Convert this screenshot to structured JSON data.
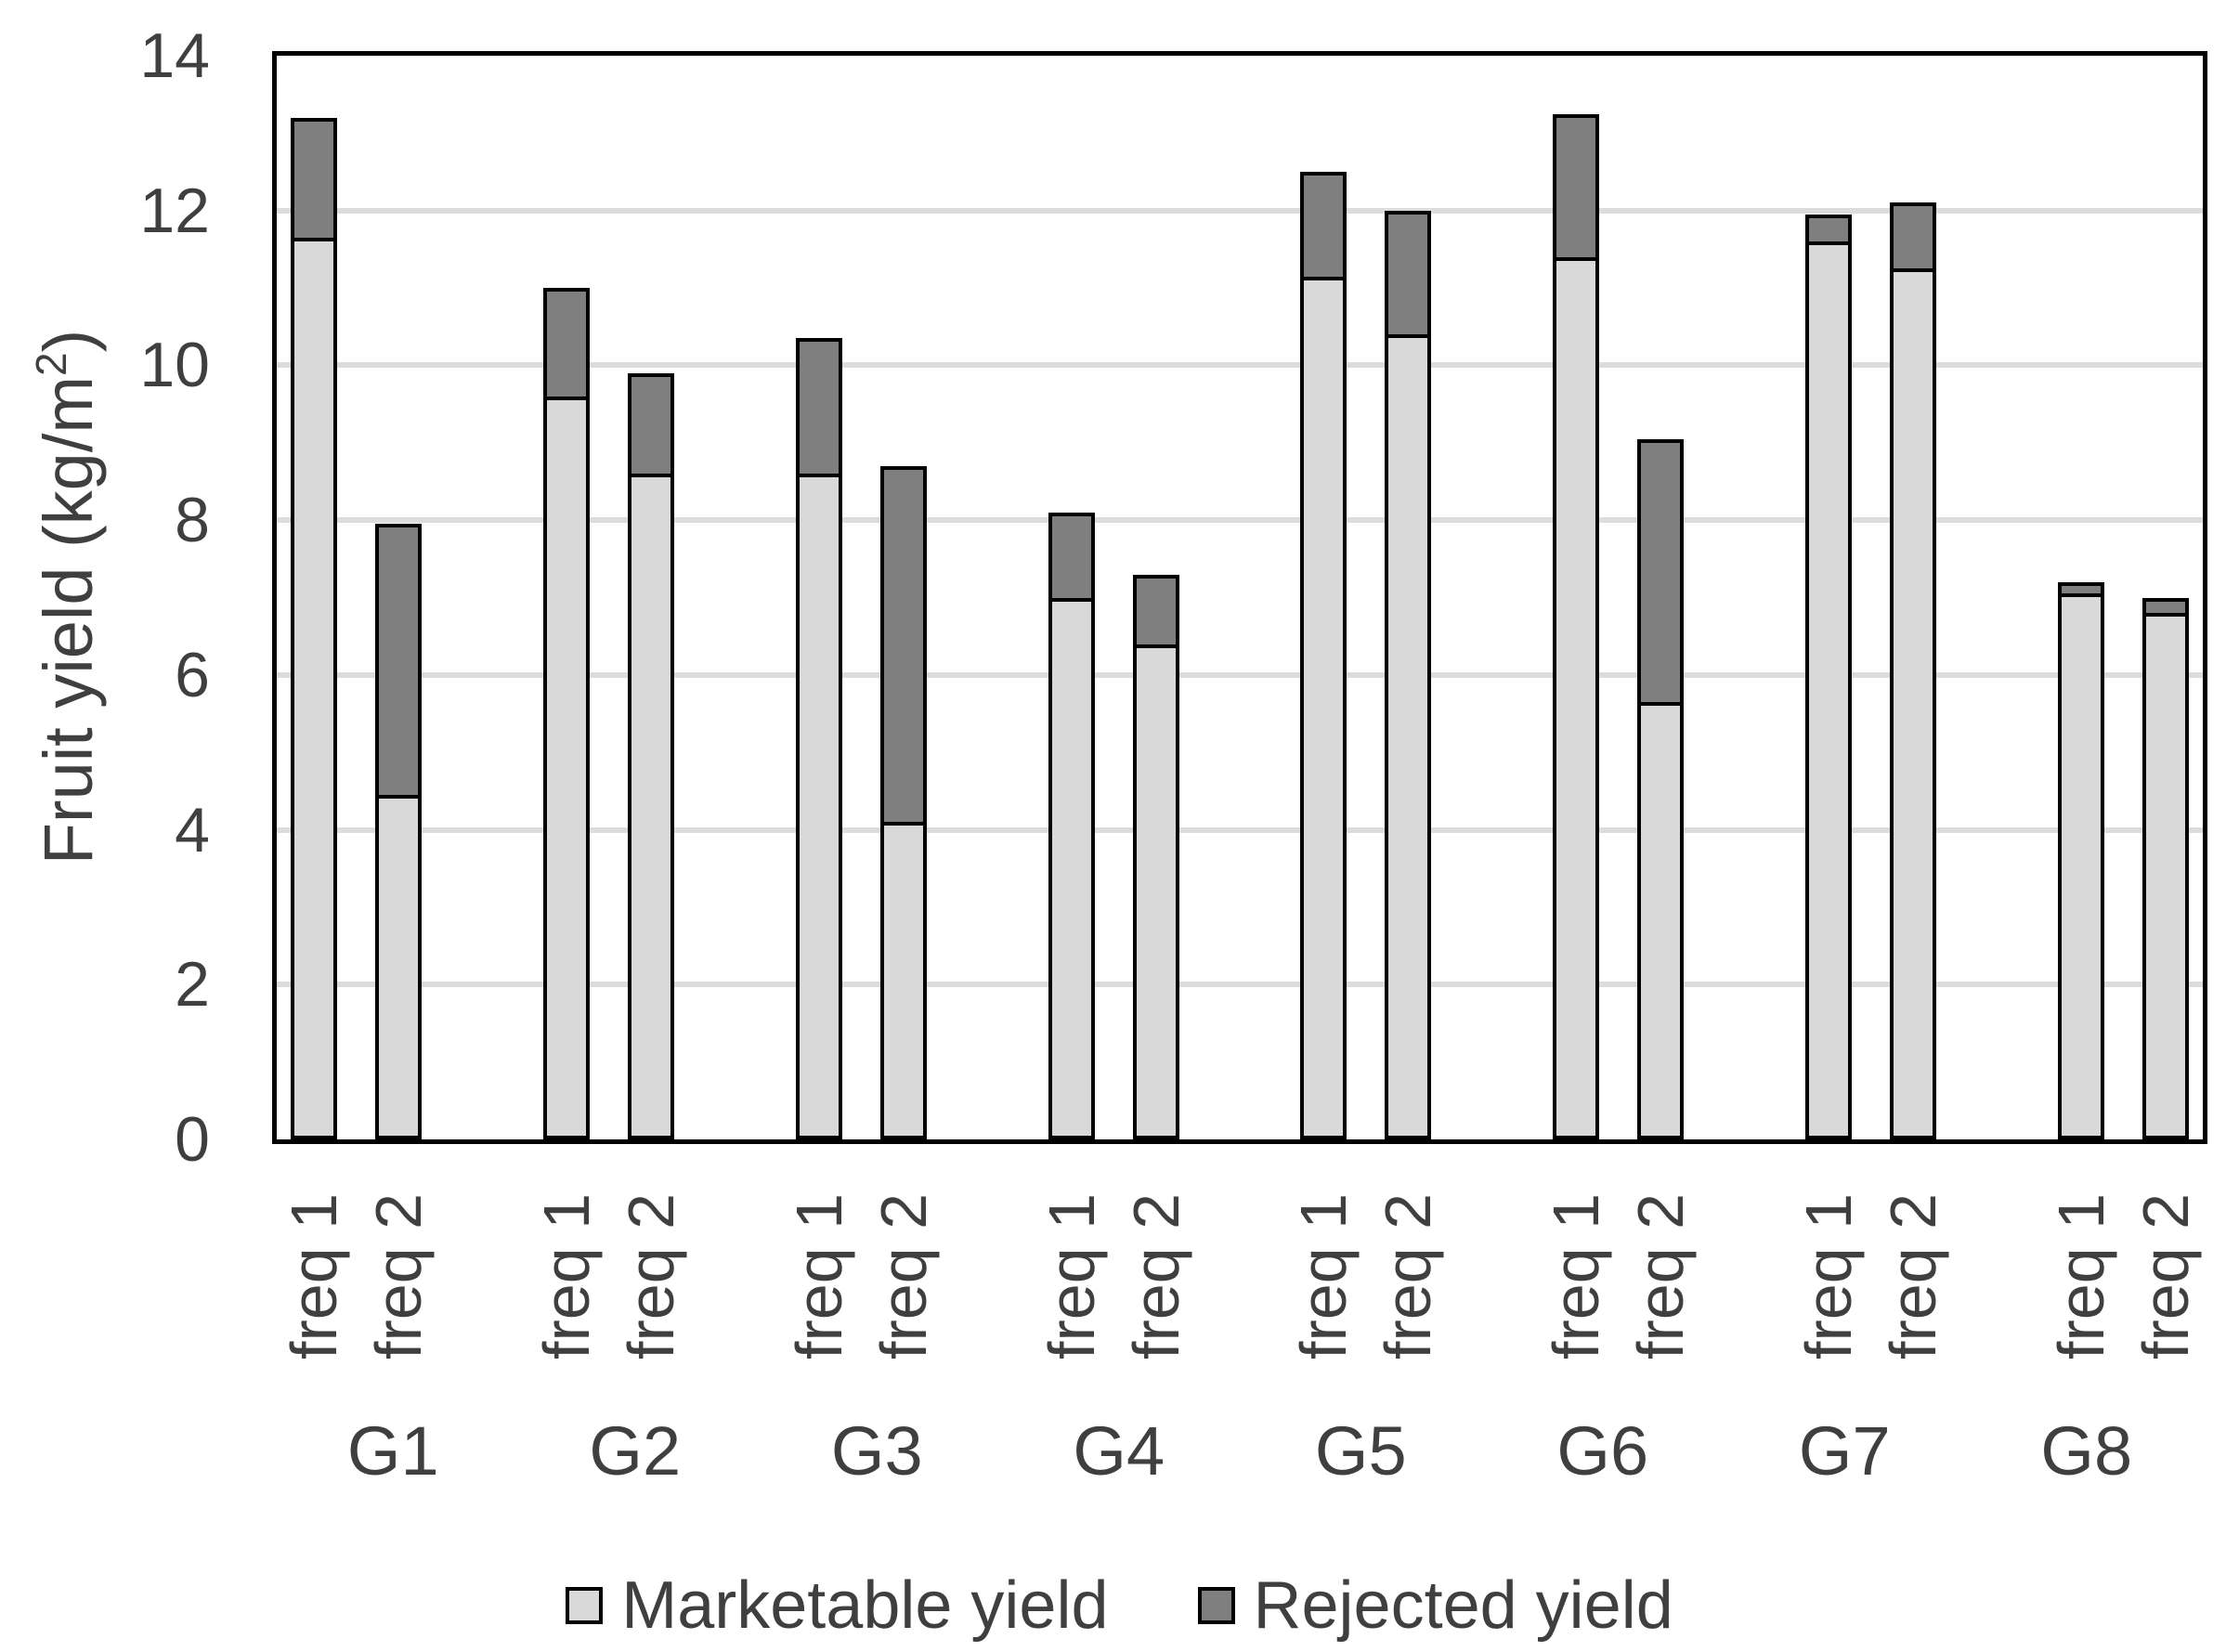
{
  "figure": {
    "background": "#ffffff",
    "text_color": "#3f3f3f",
    "axis_line_color": "#000000",
    "gridline_color": "#dcdcdc"
  },
  "y_axis": {
    "title_text": "Fruit yield (kg/m",
    "title_superscript": "2",
    "title_suffix": ")",
    "tick_labels": [
      "0",
      "2",
      "4",
      "6",
      "8",
      "10",
      "12",
      "14"
    ]
  },
  "legend": {
    "items": [
      {
        "label": "Marketable yield",
        "color": "#d9d9d9"
      },
      {
        "label": "Rejected yield",
        "color": "#7f7f7f"
      }
    ]
  },
  "chart_data": {
    "type": "bar",
    "stacked": true,
    "title": "",
    "xlabel": "",
    "ylabel": "Fruit yield (kg/m²)",
    "ylim": [
      0,
      14
    ],
    "ytick_interval": 2,
    "grid": true,
    "legend_position": "bottom",
    "series_names": [
      "Marketable yield",
      "Rejected yield"
    ],
    "categories": [
      "G1",
      "G2",
      "G3",
      "G4",
      "G5",
      "G6",
      "G7",
      "G8"
    ],
    "subcategories": [
      "freq 1",
      "freq 2"
    ],
    "groups": [
      {
        "label": "G1",
        "bars": [
          {
            "label": "freq 1",
            "marketable": 11.65,
            "rejected": 1.55
          },
          {
            "label": "freq 2",
            "marketable": 4.45,
            "rejected": 3.5
          }
        ]
      },
      {
        "label": "G2",
        "bars": [
          {
            "label": "freq 1",
            "marketable": 9.6,
            "rejected": 1.4
          },
          {
            "label": "freq 2",
            "marketable": 8.6,
            "rejected": 1.3
          }
        ]
      },
      {
        "label": "G3",
        "bars": [
          {
            "label": "freq 1",
            "marketable": 8.6,
            "rejected": 1.75
          },
          {
            "label": "freq 2",
            "marketable": 4.1,
            "rejected": 4.6
          }
        ]
      },
      {
        "label": "G4",
        "bars": [
          {
            "label": "freq 1",
            "marketable": 7.0,
            "rejected": 1.1
          },
          {
            "label": "freq 2",
            "marketable": 6.4,
            "rejected": 0.9
          }
        ]
      },
      {
        "label": "G5",
        "bars": [
          {
            "label": "freq 1",
            "marketable": 11.15,
            "rejected": 1.35
          },
          {
            "label": "freq 2",
            "marketable": 10.4,
            "rejected": 1.6
          }
        ]
      },
      {
        "label": "G6",
        "bars": [
          {
            "label": "freq 1",
            "marketable": 11.4,
            "rejected": 1.85
          },
          {
            "label": "freq 2",
            "marketable": 5.65,
            "rejected": 3.4
          }
        ]
      },
      {
        "label": "G7",
        "bars": [
          {
            "label": "freq 1",
            "marketable": 11.6,
            "rejected": 0.35
          },
          {
            "label": "freq 2",
            "marketable": 11.25,
            "rejected": 0.85
          }
        ]
      },
      {
        "label": "G8",
        "bars": [
          {
            "label": "freq 1",
            "marketable": 7.05,
            "rejected": 0.15
          },
          {
            "label": "freq 2",
            "marketable": 6.8,
            "rejected": 0.2
          }
        ]
      }
    ]
  }
}
